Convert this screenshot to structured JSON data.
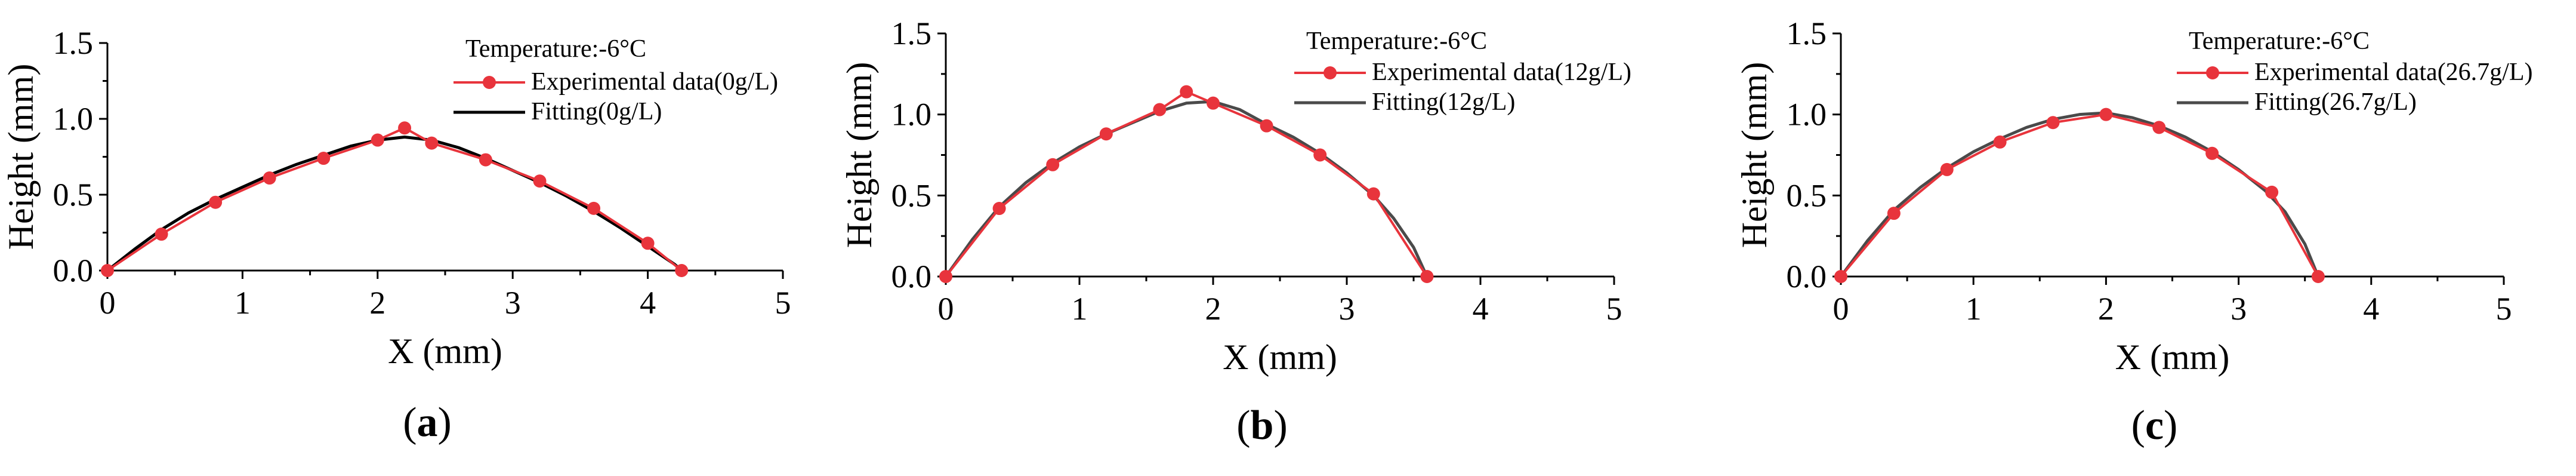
{
  "chart_data": [
    {
      "type": "line",
      "panel_label": "a",
      "annotation": "Temperature:-6°C",
      "xlabel": "X (mm)",
      "ylabel": "Height (mm)",
      "xlim": [
        0,
        5
      ],
      "ylim": [
        0,
        1.5
      ],
      "xticks": [
        0,
        1,
        2,
        3,
        4,
        5
      ],
      "yticks": [
        0.0,
        0.5,
        1.0,
        1.5
      ],
      "xtick_labels": [
        "0",
        "1",
        "2",
        "3",
        "4",
        "5"
      ],
      "ytick_labels": [
        "0.0",
        "0.5",
        "1.0",
        "1.5"
      ],
      "legend_position": "top-right",
      "series": [
        {
          "name": "Experimental data(0g/L)",
          "color": "#e8343c",
          "marker": "circle",
          "x": [
            0,
            0.4,
            0.8,
            1.2,
            1.6,
            2.0,
            2.2,
            2.4,
            2.8,
            3.2,
            3.6,
            4.0,
            4.25
          ],
          "y": [
            0,
            0.24,
            0.45,
            0.61,
            0.74,
            0.86,
            0.94,
            0.84,
            0.73,
            0.59,
            0.41,
            0.18,
            0
          ]
        },
        {
          "name": "Fitting(0g/L)",
          "color": "#000000",
          "marker": "none",
          "x": [
            0,
            0.2,
            0.4,
            0.6,
            0.8,
            1.0,
            1.2,
            1.4,
            1.6,
            1.8,
            2.0,
            2.2,
            2.4,
            2.6,
            2.8,
            3.0,
            3.2,
            3.4,
            3.6,
            3.8,
            4.0,
            4.1,
            4.2,
            4.25
          ],
          "y": [
            0,
            0.14,
            0.27,
            0.38,
            0.47,
            0.55,
            0.63,
            0.7,
            0.76,
            0.82,
            0.86,
            0.88,
            0.86,
            0.81,
            0.74,
            0.66,
            0.58,
            0.49,
            0.39,
            0.28,
            0.16,
            0.1,
            0.04,
            0
          ]
        }
      ]
    },
    {
      "type": "line",
      "panel_label": "b",
      "annotation": "Temperature:-6°C",
      "xlabel": "X (mm)",
      "ylabel": "Height (mm)",
      "xlim": [
        0,
        5
      ],
      "ylim": [
        0,
        1.5
      ],
      "xticks": [
        0,
        1,
        2,
        3,
        4,
        5
      ],
      "yticks": [
        0.0,
        0.5,
        1.0,
        1.5
      ],
      "xtick_labels": [
        "0",
        "1",
        "2",
        "3",
        "4",
        "5"
      ],
      "ytick_labels": [
        "0.0",
        "0.5",
        "1.0",
        "1.5"
      ],
      "legend_position": "top-right",
      "series": [
        {
          "name": "Experimental data(12g/L)",
          "color": "#e8343c",
          "marker": "circle",
          "x": [
            0,
            0.4,
            0.8,
            1.2,
            1.6,
            1.8,
            2.0,
            2.4,
            2.8,
            3.2,
            3.6
          ],
          "y": [
            0,
            0.42,
            0.69,
            0.88,
            1.03,
            1.14,
            1.07,
            0.93,
            0.75,
            0.51,
            0
          ]
        },
        {
          "name": "Fitting(12g/L)",
          "color": "#4a4a4a",
          "marker": "none",
          "x": [
            0,
            0.2,
            0.4,
            0.6,
            0.8,
            1.0,
            1.2,
            1.4,
            1.6,
            1.8,
            2.0,
            2.2,
            2.4,
            2.6,
            2.8,
            3.0,
            3.2,
            3.35,
            3.5,
            3.6
          ],
          "y": [
            0,
            0.23,
            0.43,
            0.58,
            0.7,
            0.8,
            0.88,
            0.95,
            1.02,
            1.07,
            1.08,
            1.03,
            0.94,
            0.86,
            0.76,
            0.64,
            0.5,
            0.36,
            0.18,
            0
          ]
        }
      ]
    },
    {
      "type": "line",
      "panel_label": "c",
      "annotation": "Temperature:-6°C",
      "xlabel": "X (mm)",
      "ylabel": "Height (mm)",
      "xlim": [
        0,
        5
      ],
      "ylim": [
        0,
        1.5
      ],
      "xticks": [
        0,
        1,
        2,
        3,
        4,
        5
      ],
      "yticks": [
        0.0,
        0.5,
        1.0,
        1.5
      ],
      "xtick_labels": [
        "0",
        "1",
        "2",
        "3",
        "4",
        "5"
      ],
      "ytick_labels": [
        "0.0",
        "0.5",
        "1.0",
        "1.5"
      ],
      "legend_position": "top-right",
      "series": [
        {
          "name": "Experimental data(26.7g/L)",
          "color": "#e8343c",
          "marker": "circle",
          "x": [
            0,
            0.4,
            0.8,
            1.2,
            1.6,
            2.0,
            2.4,
            2.8,
            3.25,
            3.6
          ],
          "y": [
            0,
            0.39,
            0.66,
            0.83,
            0.95,
            1.0,
            0.92,
            0.76,
            0.52,
            0
          ]
        },
        {
          "name": "Fitting(26.7g/L)",
          "color": "#4a4a4a",
          "marker": "none",
          "x": [
            0,
            0.2,
            0.4,
            0.6,
            0.8,
            1.0,
            1.2,
            1.4,
            1.6,
            1.8,
            2.0,
            2.2,
            2.4,
            2.6,
            2.8,
            3.0,
            3.2,
            3.35,
            3.5,
            3.6
          ],
          "y": [
            0,
            0.22,
            0.41,
            0.55,
            0.67,
            0.77,
            0.85,
            0.92,
            0.97,
            1.0,
            1.01,
            0.98,
            0.93,
            0.86,
            0.77,
            0.66,
            0.53,
            0.4,
            0.2,
            0
          ]
        }
      ]
    }
  ]
}
